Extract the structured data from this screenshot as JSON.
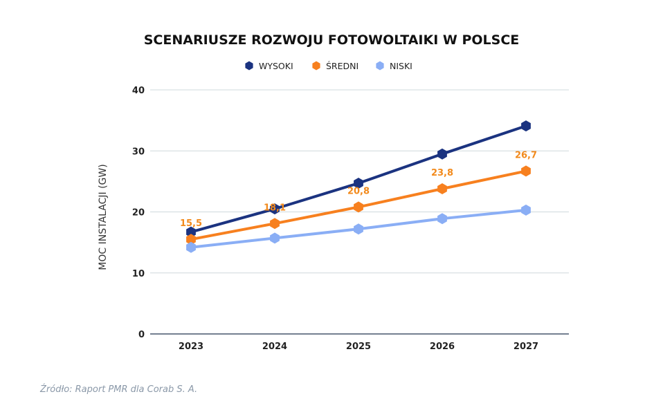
{
  "chart_data": {
    "type": "line",
    "title": "SCENARIUSZE ROZWOJU FOTOWOLTAIKI W POLSCE",
    "xlabel": "",
    "ylabel": "MOC INSTALACJI (GW)",
    "categories": [
      "2023",
      "2024",
      "2025",
      "2026",
      "2027"
    ],
    "ylim": [
      0,
      40
    ],
    "yticks": [
      "0",
      "10",
      "20",
      "30",
      "40"
    ],
    "grid": true,
    "legend_position": "top-center",
    "series": [
      {
        "name": "WYSOKI",
        "color": "#1b3380",
        "values": [
          16.7,
          20.5,
          24.7,
          29.5,
          34.1
        ],
        "labels": [
          "",
          "",
          "",
          "",
          ""
        ]
      },
      {
        "name": "ŚREDNI",
        "color": "#f7801f",
        "values": [
          15.5,
          18.1,
          20.8,
          23.8,
          26.7
        ],
        "labels": [
          "15,5",
          "18,1",
          "20,8",
          "23,8",
          "26,7"
        ]
      },
      {
        "name": "NISKI",
        "color": "#8aaef5",
        "values": [
          14.2,
          15.7,
          17.2,
          18.9,
          20.3
        ],
        "labels": [
          "",
          "",
          "",
          "",
          ""
        ]
      }
    ]
  },
  "source_text": "Źródło: Raport PMR dla Corab S. A."
}
